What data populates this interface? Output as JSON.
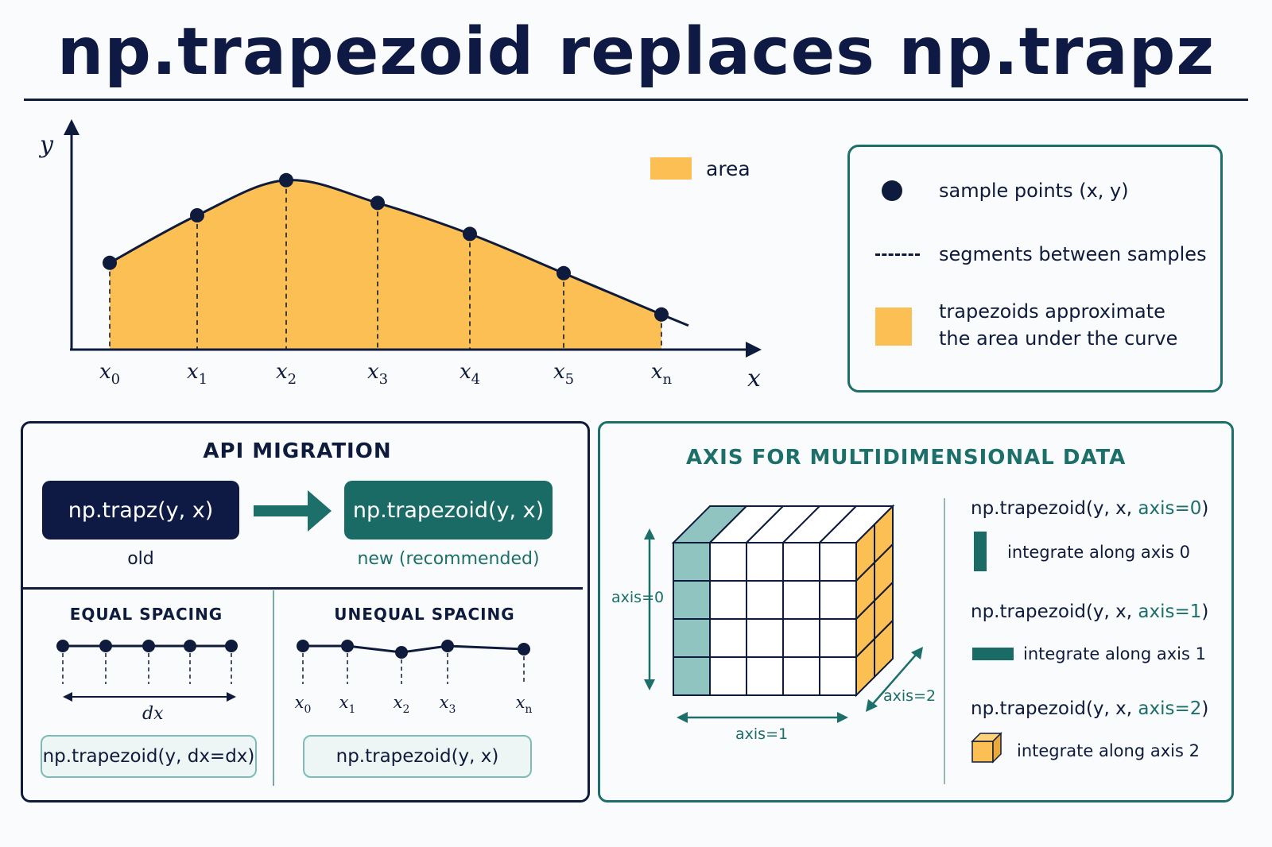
{
  "page": {
    "width": 1600,
    "height": 1066
  },
  "title": "np.trapezoid replaces np.trapz",
  "colors": {
    "navy": "#0f1b3d",
    "teal": "#1d6f6a",
    "area": "#fbbf53",
    "light_teal": "#8fc4c0"
  },
  "chart_data": {
    "type": "area",
    "ylabel": "y",
    "xlabel": "x",
    "x_labels": [
      "x0",
      "x1",
      "x2",
      "x3",
      "x4",
      "x5",
      "xn"
    ],
    "y": [
      0.42,
      0.65,
      0.82,
      0.71,
      0.56,
      0.37,
      0.17
    ],
    "legend": "area"
  },
  "legend": {
    "items": [
      {
        "icon": "dot-icon",
        "text": "sample points (x, y)"
      },
      {
        "icon": "dashed-line-icon",
        "text": "segments between samples"
      },
      {
        "icon": "area-swatch-icon",
        "text_line1": "trapezoids approximate",
        "text_line2": "the area under the curve"
      }
    ]
  },
  "api_migration": {
    "heading": "API MIGRATION",
    "old_code": "np.trapz(y, x)",
    "old_label": "old",
    "new_code": "np.trapezoid(y, x)",
    "new_label": "new (recommended)",
    "equal": {
      "heading": "EQUAL SPACING",
      "dx_label": "dx",
      "code": "np.trapezoid(y, dx=dx)"
    },
    "unequal": {
      "heading": "UNEQUAL SPACING",
      "labels": [
        "x0",
        "x1",
        "x2",
        "x3",
        "xn"
      ],
      "code": "np.trapezoid(y, x)"
    }
  },
  "axis_panel": {
    "heading": "AXIS FOR MULTIDIMENSIONAL DATA",
    "axis0_label": "axis=0",
    "axis1_label": "axis=1",
    "axis2_label": "axis=2",
    "examples": [
      {
        "code_prefix": "np.trapezoid(y, x, ",
        "code_axis": "axis=0",
        "code_suffix": ")",
        "desc": "integrate along axis 0"
      },
      {
        "code_prefix": "np.trapezoid(y, x, ",
        "code_axis": "axis=1",
        "code_suffix": ")",
        "desc": "integrate along axis 1"
      },
      {
        "code_prefix": "np.trapezoid(y, x, ",
        "code_axis": "axis=2",
        "code_suffix": ")",
        "desc": "integrate along axis 2"
      }
    ]
  }
}
